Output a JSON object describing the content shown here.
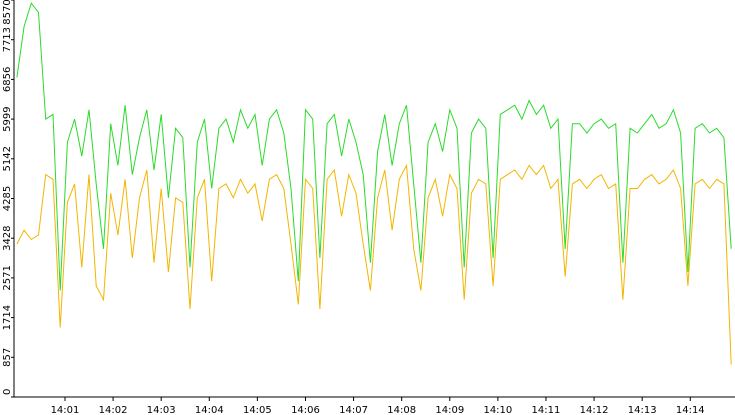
{
  "chart_data": {
    "type": "line",
    "x": [
      0,
      0.15,
      0.3,
      0.45,
      0.6,
      0.75,
      0.9,
      1.05,
      1.2,
      1.35,
      1.5,
      1.65,
      1.8,
      1.95,
      2.1,
      2.25,
      2.4,
      2.55,
      2.7,
      2.85,
      3,
      3.15,
      3.3,
      3.45,
      3.6,
      3.75,
      3.9,
      4.05,
      4.2,
      4.35,
      4.5,
      4.65,
      4.8,
      4.95,
      5.1,
      5.25,
      5.4,
      5.55,
      5.7,
      5.85,
      6,
      6.15,
      6.3,
      6.45,
      6.6,
      6.75,
      6.9,
      7.05,
      7.2,
      7.35,
      7.5,
      7.65,
      7.8,
      7.95,
      8.1,
      8.25,
      8.4,
      8.55,
      8.7,
      8.85,
      9,
      9.15,
      9.3,
      9.45,
      9.6,
      9.75,
      9.9,
      10.05,
      10.2,
      10.35,
      10.5,
      10.65,
      10.8,
      10.95,
      11.1,
      11.25,
      11.4,
      11.55,
      11.7,
      11.85,
      12,
      12.15,
      12.3,
      12.45,
      12.6,
      12.75,
      12.9,
      13.05,
      13.2,
      13.35,
      13.5,
      13.65,
      13.8,
      13.95,
      14.1,
      14.25,
      14.4,
      14.55,
      14.7,
      14.85
    ],
    "series": [
      {
        "color": "#2adb2a",
        "values": [
          6900,
          8000,
          8500,
          8300,
          6000,
          6100,
          2300,
          5500,
          6000,
          5200,
          6200,
          4600,
          3200,
          5900,
          5000,
          6300,
          4800,
          5600,
          6200,
          4900,
          6100,
          4300,
          5800,
          5600,
          2800,
          5500,
          6000,
          4500,
          5800,
          6000,
          5500,
          6200,
          5800,
          6100,
          5000,
          6000,
          6200,
          5700,
          4500,
          2500,
          6200,
          6000,
          3000,
          5900,
          6100,
          5200,
          6000,
          5500,
          4800,
          2900,
          5300,
          6100,
          5000,
          5900,
          6300,
          4600,
          2900,
          5500,
          5900,
          5300,
          6200,
          5800,
          2800,
          5700,
          6000,
          5800,
          3000,
          6100,
          6200,
          6300,
          6000,
          6400,
          6100,
          6300,
          5800,
          6000,
          3200,
          5900,
          5900,
          5700,
          5900,
          6000,
          5800,
          5900,
          2900,
          5800,
          5700,
          5900,
          6100,
          5800,
          5900,
          6200,
          5700,
          2700,
          5800,
          5900,
          5700,
          5800,
          5600,
          3200
        ]
      },
      {
        "color": "#f2b600",
        "values": [
          3300,
          3600,
          3400,
          3500,
          4800,
          4700,
          1500,
          4200,
          4600,
          2800,
          4800,
          2400,
          2100,
          4400,
          3500,
          4700,
          3000,
          4300,
          4900,
          2900,
          4500,
          2700,
          4300,
          4200,
          1900,
          4300,
          4700,
          2500,
          4500,
          4600,
          4300,
          4700,
          4400,
          4600,
          3800,
          4700,
          4800,
          4500,
          3300,
          2000,
          4700,
          4500,
          1900,
          4700,
          4900,
          3900,
          4800,
          4400,
          3300,
          2300,
          4300,
          4900,
          3600,
          4700,
          5000,
          3200,
          2300,
          4300,
          4700,
          3900,
          4800,
          4500,
          2100,
          4400,
          4700,
          4600,
          2400,
          4700,
          4800,
          4900,
          4700,
          5000,
          4800,
          5000,
          4500,
          4700,
          2600,
          4600,
          4700,
          4500,
          4700,
          4800,
          4500,
          4600,
          2100,
          4500,
          4500,
          4700,
          4800,
          4600,
          4700,
          4900,
          4500,
          2400,
          4600,
          4700,
          4500,
          4700,
          4600,
          700
        ]
      }
    ],
    "xlim": [
      -0.06,
      14.93
    ],
    "xticks": [
      {
        "value": 1,
        "label": "14:01"
      },
      {
        "value": 2,
        "label": "14:02"
      },
      {
        "value": 3,
        "label": "14:03"
      },
      {
        "value": 4,
        "label": "14:04"
      },
      {
        "value": 5,
        "label": "14:05"
      },
      {
        "value": 6,
        "label": "14:06"
      },
      {
        "value": 7,
        "label": "14:07"
      },
      {
        "value": 8,
        "label": "14:08"
      },
      {
        "value": 9,
        "label": "14:09"
      },
      {
        "value": 10,
        "label": "14:10"
      },
      {
        "value": 11,
        "label": "14:11"
      },
      {
        "value": 12,
        "label": "14:12"
      },
      {
        "value": 13,
        "label": "14:13"
      },
      {
        "value": 14,
        "label": "14:14"
      }
    ],
    "ylim": [
      0,
      8570
    ],
    "yticks": [
      0,
      857,
      1714,
      2571,
      3428,
      4285,
      5142,
      5999,
      6856,
      7713,
      8570
    ]
  }
}
